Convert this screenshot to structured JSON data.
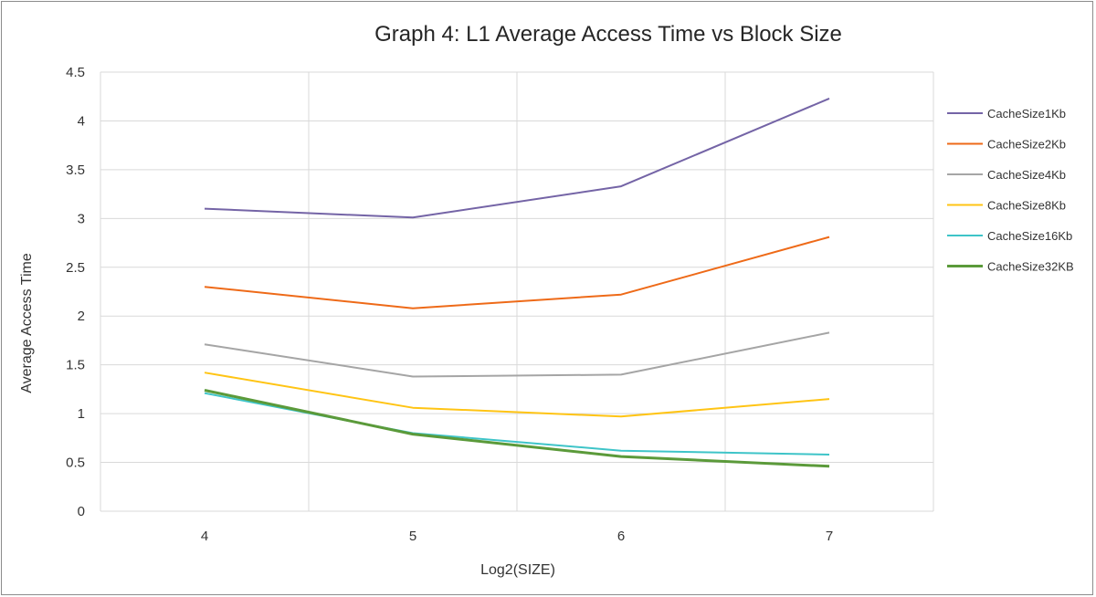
{
  "chart_data": {
    "type": "line",
    "title": "Graph 4: L1 Average Access Time vs Block Size",
    "xlabel": "Log2(SIZE)",
    "ylabel": "Average Access Time",
    "categories": [
      "4",
      "5",
      "6",
      "7"
    ],
    "ylim": [
      0,
      4.5
    ],
    "yticks": [
      "0",
      "0.5",
      "1",
      "1.5",
      "2",
      "2.5",
      "3",
      "3.5",
      "4",
      "4.5"
    ],
    "grid": true,
    "legend_position": "right",
    "series": [
      {
        "name": "CacheSize1Kb",
        "color": "#7464a6",
        "values": [
          3.1,
          3.01,
          3.33,
          4.23
        ]
      },
      {
        "name": "CacheSize2Kb",
        "color": "#ee6a18",
        "values": [
          2.3,
          2.08,
          2.22,
          2.81
        ]
      },
      {
        "name": "CacheSize4Kb",
        "color": "#a5a5a5",
        "values": [
          1.71,
          1.38,
          1.4,
          1.83
        ]
      },
      {
        "name": "CacheSize8Kb",
        "color": "#ffc414",
        "values": [
          1.42,
          1.06,
          0.97,
          1.15
        ]
      },
      {
        "name": "CacheSize16Kb",
        "color": "#3ec4c8",
        "values": [
          1.21,
          0.8,
          0.62,
          0.58
        ]
      },
      {
        "name": "CacheSize32KB",
        "color": "#5b9a3a",
        "values": [
          1.24,
          0.79,
          0.56,
          0.46
        ]
      }
    ]
  }
}
